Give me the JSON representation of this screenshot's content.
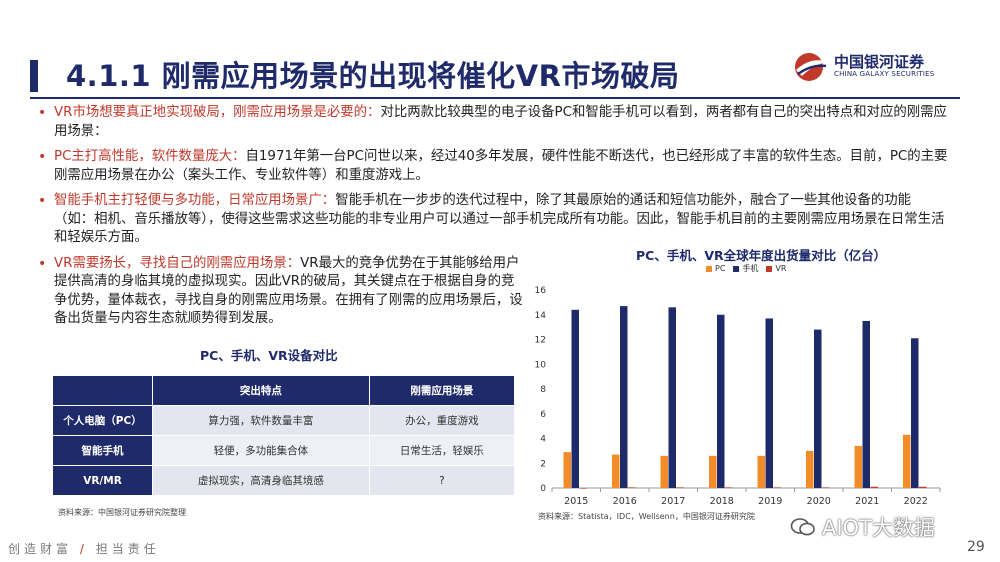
{
  "header": {
    "title": "4.1.1 刚需应用场景的出现将催化VR市场破局",
    "logo_cn": "中国银河证券",
    "logo_en": "CHINA GALAXY SECURITIES"
  },
  "bullets": [
    {
      "highlight": "VR市场想要真正地实现破局，刚需应用场景是必要的：",
      "text": "对比两款比较典型的电子设备PC和智能手机可以看到，两者都有自己的突出特点和对应的刚需应用场景："
    },
    {
      "highlight": "PC主打高性能，软件数量庞大：",
      "text": "自1971年第一台PC问世以来，经过40多年发展，硬件性能不断迭代，也已经形成了丰富的软件生态。目前，PC的主要刚需应用场景在办公（案头工作、专业软件等）和重度游戏上。"
    },
    {
      "highlight": "智能手机主打轻便与多功能，日常应用场景广：",
      "text": "智能手机在一步步的迭代过程中，除了其最原始的通话和短信功能外，融合了一些其他设备的功能（如：相机、音乐播放等），使得这些需求这些功能的非专业用户可以通过一部手机完成所有功能。因此，智能手机目前的主要刚需应用场景在日常生活和轻娱乐方面。"
    },
    {
      "highlight": "VR需要扬长，寻找自己的刚需应用场景：",
      "text": "VR最大的竞争优势在于其能够给用户提供高清的身临其境的虚拟现实。因此VR的破局，其关键点在于根据自身的竞争优势，量体裁衣，寻找自身的刚需应用场景。在拥有了刚需的应用场景后，设备出货量与内容生态就顺势得到发展。"
    }
  ],
  "table": {
    "title": "PC、手机、VR设备对比",
    "headers": [
      "",
      "突出特点",
      "刚需应用场景"
    ],
    "rows": [
      [
        "个人电脑（PC）",
        "算力强，软件数量丰富",
        "办公，重度游戏"
      ],
      [
        "智能手机",
        "轻便，多功能集合体",
        "日常生活，轻娱乐"
      ],
      [
        "VR/MR",
        "虚拟现实，高清身临其境感",
        "?"
      ]
    ],
    "source": "资料来源：中国银河证券研究院整理"
  },
  "chart_title": "PC、手机、VR全球年度出货量对比（亿台）",
  "chart_source": "资料来源：Statista，IDC，Wellsenn，中国银河证券研究院",
  "chart_data": {
    "type": "bar",
    "title": "PC、手机、VR全球年度出货量对比（亿台）",
    "categories": [
      "2015",
      "2016",
      "2017",
      "2018",
      "2019",
      "2020",
      "2021",
      "2022"
    ],
    "series": [
      {
        "name": "PC",
        "color": "#f28c28",
        "values": [
          2.9,
          2.7,
          2.6,
          2.6,
          2.6,
          3.0,
          3.4,
          4.3
        ]
      },
      {
        "name": "手机",
        "color": "#1f2a6b",
        "values": [
          14.4,
          14.7,
          14.6,
          14.0,
          13.7,
          12.8,
          13.5,
          12.1
        ]
      },
      {
        "name": "VR",
        "color": "#c0392b",
        "values": [
          0.0,
          0.05,
          0.05,
          0.05,
          0.05,
          0.05,
          0.1,
          0.1
        ]
      }
    ],
    "ylim": [
      0,
      16
    ],
    "yticks": [
      0,
      2,
      4,
      6,
      8,
      10,
      12,
      14,
      16
    ],
    "legend": "top"
  },
  "footer": {
    "slogan_left": "创造财富",
    "slogan_sep": "/",
    "slogan_right": "担当责任",
    "page": "29",
    "watermark": "AIOT大数据"
  }
}
